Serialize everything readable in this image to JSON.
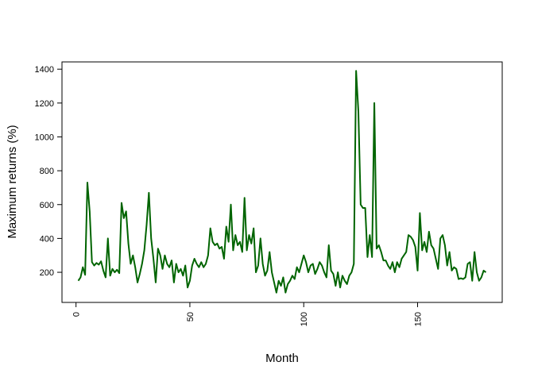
{
  "chart_data": {
    "type": "line",
    "x_label": "Month",
    "y_label": "Maximum returns (%)",
    "x": [
      1,
      2,
      3,
      4,
      5,
      6,
      7,
      8,
      9,
      10,
      11,
      12,
      13,
      14,
      15,
      16,
      17,
      18,
      19,
      20,
      21,
      22,
      23,
      24,
      25,
      26,
      27,
      28,
      29,
      30,
      31,
      32,
      33,
      34,
      35,
      36,
      37,
      38,
      39,
      40,
      41,
      42,
      43,
      44,
      45,
      46,
      47,
      48,
      49,
      50,
      51,
      52,
      53,
      54,
      55,
      56,
      57,
      58,
      59,
      60,
      61,
      62,
      63,
      64,
      65,
      66,
      67,
      68,
      69,
      70,
      71,
      72,
      73,
      74,
      75,
      76,
      77,
      78,
      79,
      80,
      81,
      82,
      83,
      84,
      85,
      86,
      87,
      88,
      89,
      90,
      91,
      92,
      93,
      94,
      95,
      96,
      97,
      98,
      99,
      100,
      101,
      102,
      103,
      104,
      105,
      106,
      107,
      108,
      109,
      110,
      111,
      112,
      113,
      114,
      115,
      116,
      117,
      118,
      119,
      120,
      121,
      122,
      123,
      124,
      125,
      126,
      127,
      128,
      129,
      130,
      131,
      132,
      133,
      134,
      135,
      136,
      137,
      138,
      139,
      140,
      141,
      142,
      143,
      144,
      145,
      146,
      147,
      148,
      149,
      150,
      151,
      152,
      153,
      154,
      155,
      156,
      157,
      158,
      159,
      160,
      161,
      162,
      163,
      164,
      165,
      166,
      167,
      168,
      169,
      170,
      171,
      172,
      173,
      174,
      175,
      176,
      177,
      178,
      179,
      180
    ],
    "series": [
      {
        "color": "#006400",
        "values": [
          150,
          170,
          230,
          185,
          730,
          560,
          260,
          240,
          255,
          245,
          265,
          210,
          170,
          400,
          180,
          220,
          200,
          215,
          195,
          610,
          520,
          560,
          370,
          250,
          300,
          230,
          140,
          190,
          250,
          330,
          480,
          670,
          400,
          280,
          140,
          340,
          300,
          220,
          300,
          250,
          230,
          270,
          140,
          250,
          200,
          220,
          180,
          240,
          110,
          150,
          240,
          280,
          250,
          230,
          260,
          230,
          250,
          300,
          460,
          380,
          360,
          370,
          340,
          350,
          280,
          470,
          380,
          600,
          330,
          420,
          360,
          380,
          320,
          640,
          330,
          420,
          370,
          460,
          200,
          240,
          400,
          250,
          180,
          210,
          320,
          200,
          140,
          80,
          150,
          120,
          170,
          80,
          130,
          150,
          180,
          160,
          230,
          200,
          250,
          300,
          260,
          200,
          240,
          250,
          190,
          220,
          260,
          240,
          200,
          170,
          360,
          210,
          190,
          120,
          200,
          110,
          180,
          150,
          130,
          180,
          200,
          250,
          1390,
          1150,
          600,
          580,
          580,
          290,
          420,
          290,
          1200,
          340,
          360,
          320,
          270,
          270,
          240,
          220,
          260,
          200,
          260,
          230,
          280,
          300,
          320,
          420,
          410,
          390,
          350,
          210,
          550,
          330,
          380,
          320,
          440,
          360,
          340,
          280,
          220,
          400,
          420,
          360,
          240,
          320,
          210,
          230,
          220,
          160,
          165,
          160,
          170,
          250,
          260,
          150,
          320,
          200,
          150,
          170,
          210,
          200
        ]
      }
    ],
    "xlim": [
      -6.16,
      187.16
    ],
    "xticks": [
      0,
      50,
      100,
      150
    ],
    "ylim": [
      22,
      1443
    ],
    "yticks": [
      200,
      400,
      600,
      800,
      1000,
      1200,
      1400
    ]
  }
}
